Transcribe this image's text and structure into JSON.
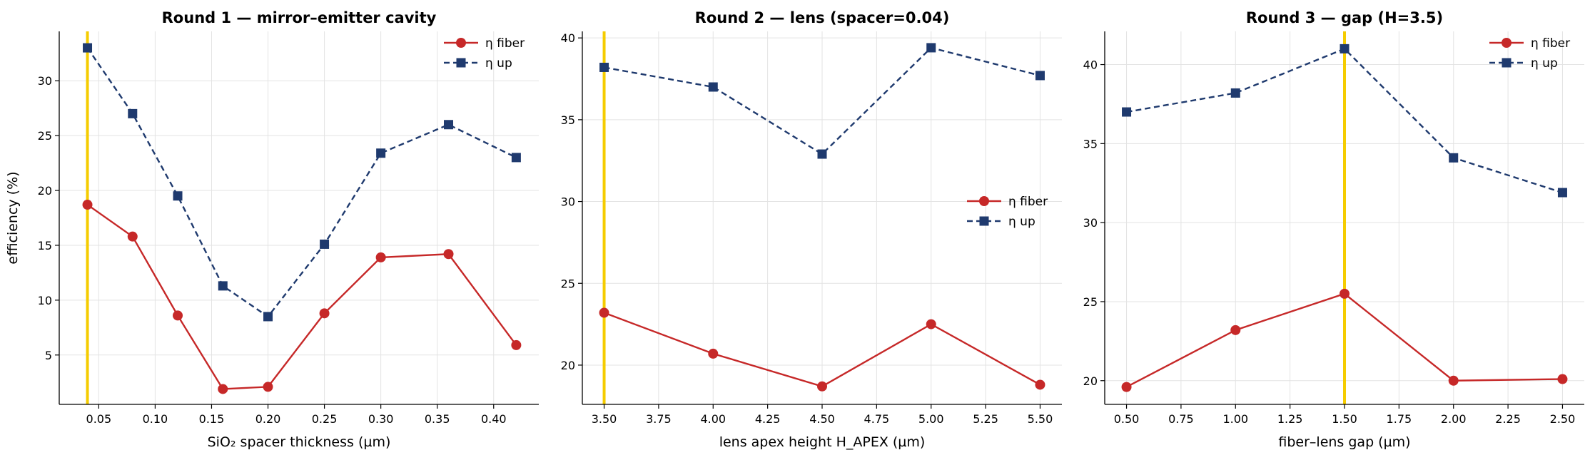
{
  "chart_data": [
    {
      "type": "line",
      "title": "Round 1 — mirror–emitter cavity",
      "xlabel": "SiO₂ spacer thickness (µm)",
      "ylabel": "efficiency (%)",
      "xlim": [
        0.015,
        0.44
      ],
      "ylim": [
        0.5,
        34.5
      ],
      "xticks": [
        "0.05",
        "0.10",
        "0.15",
        "0.20",
        "0.25",
        "0.30",
        "0.35",
        "0.40"
      ],
      "yticks": [
        "5",
        "10",
        "15",
        "20",
        "25",
        "30"
      ],
      "highlight_x": 0.04,
      "highlight_color": "#f5cc00",
      "grid": true,
      "legend": "upper right",
      "x": [
        0.04,
        0.08,
        0.12,
        0.16,
        0.2,
        0.25,
        0.3,
        0.36,
        0.42
      ],
      "series": [
        {
          "name": "η fiber",
          "color": "#c62828",
          "marker": "circle",
          "linestyle": "solid",
          "values": [
            18.7,
            15.8,
            8.6,
            1.9,
            2.1,
            8.8,
            13.9,
            14.2,
            5.9
          ]
        },
        {
          "name": "η up",
          "color": "#1f3a6e",
          "marker": "square",
          "linestyle": "dashed",
          "values": [
            33.0,
            27.0,
            19.5,
            11.3,
            8.5,
            15.1,
            23.4,
            26.0,
            23.0
          ]
        }
      ]
    },
    {
      "type": "line",
      "title": "Round 2 — lens (spacer=0.04)",
      "xlabel": "lens apex height H_APEX (µm)",
      "ylabel": "",
      "xlim": [
        3.4,
        5.6
      ],
      "ylim": [
        17.6,
        40.4
      ],
      "xticks": [
        "3.50",
        "3.75",
        "4.00",
        "4.25",
        "4.50",
        "4.75",
        "5.00",
        "5.25",
        "5.50"
      ],
      "yticks": [
        "20",
        "25",
        "30",
        "35",
        "40"
      ],
      "highlight_x": 3.5,
      "highlight_color": "#f5cc00",
      "grid": true,
      "legend": "center right",
      "x": [
        3.5,
        4.0,
        4.5,
        5.0,
        5.5
      ],
      "series": [
        {
          "name": "η fiber",
          "color": "#c62828",
          "marker": "circle",
          "linestyle": "solid",
          "values": [
            23.2,
            20.7,
            18.7,
            22.5,
            18.8
          ]
        },
        {
          "name": "η up",
          "color": "#1f3a6e",
          "marker": "square",
          "linestyle": "dashed",
          "values": [
            38.2,
            37.0,
            32.9,
            39.4,
            37.7
          ]
        }
      ]
    },
    {
      "type": "line",
      "title": "Round 3 — gap (H=3.5)",
      "xlabel": "fiber–lens gap (µm)",
      "ylabel": "",
      "xlim": [
        0.4,
        2.6
      ],
      "ylim": [
        18.5,
        42.1
      ],
      "xticks": [
        "0.50",
        "0.75",
        "1.00",
        "1.25",
        "1.50",
        "1.75",
        "2.00",
        "2.25",
        "2.50"
      ],
      "yticks": [
        "20",
        "25",
        "30",
        "35",
        "40"
      ],
      "highlight_x": 1.5,
      "highlight_color": "#f5cc00",
      "grid": true,
      "legend": "upper right",
      "x": [
        0.5,
        1.0,
        1.5,
        2.0,
        2.5
      ],
      "series": [
        {
          "name": "η fiber",
          "color": "#c62828",
          "marker": "circle",
          "linestyle": "solid",
          "values": [
            19.6,
            23.2,
            25.5,
            20.0,
            20.1
          ]
        },
        {
          "name": "η up",
          "color": "#1f3a6e",
          "marker": "square",
          "linestyle": "dashed",
          "values": [
            37.0,
            38.2,
            41.0,
            34.1,
            31.9
          ]
        }
      ]
    }
  ]
}
